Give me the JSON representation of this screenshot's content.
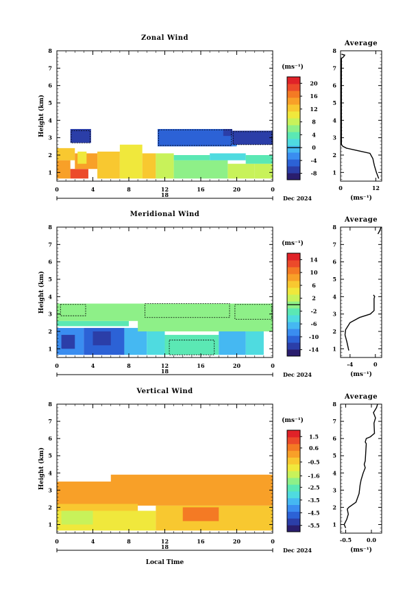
{
  "figure": {
    "date_label": "Dec 2024",
    "day_label": "18",
    "xlabel": "Local Time"
  },
  "chart_data": [
    {
      "type": "heatmap",
      "title": "Zonal Wind",
      "ylabel": "Height (km)",
      "unit_label": "(ms⁻¹)",
      "xlim": [
        0,
        24
      ],
      "ylim": [
        0.5,
        8
      ],
      "x_ticks": [
        "0",
        "4",
        "8",
        "12",
        "16",
        "20",
        "0"
      ],
      "y_ticks": [
        "1",
        "2",
        "3",
        "4",
        "5",
        "6",
        "7",
        "8"
      ],
      "colorbar": {
        "range": [
          -10,
          22
        ],
        "labels": [
          "20",
          "16",
          "12",
          "8",
          "4",
          "0",
          "-4",
          "-8"
        ],
        "contour_level": 0
      },
      "field": [
        {
          "x": [
            0,
            1.5
          ],
          "y": [
            0.65,
            1.7
          ],
          "v": 14
        },
        {
          "x": [
            1.5,
            3.5
          ],
          "y": [
            0.65,
            1.2
          ],
          "v": 18
        },
        {
          "x": [
            0,
            2
          ],
          "y": [
            1.7,
            2.4
          ],
          "v": 12
        },
        {
          "x": [
            2,
            4.5
          ],
          "y": [
            1.2,
            2.1
          ],
          "v": 14
        },
        {
          "x": [
            4.5,
            7
          ],
          "y": [
            0.65,
            2.2
          ],
          "v": 13
        },
        {
          "x": [
            7,
            9.5
          ],
          "y": [
            0.65,
            2.6
          ],
          "v": 11
        },
        {
          "x": [
            2.3,
            3.3
          ],
          "y": [
            1.5,
            2.2
          ],
          "v": 10
        },
        {
          "x": [
            9.5,
            11
          ],
          "y": [
            0.65,
            2.1
          ],
          "v": 13
        },
        {
          "x": [
            11,
            13
          ],
          "y": [
            0.65,
            2.1
          ],
          "v": 9
        },
        {
          "x": [
            13,
            16
          ],
          "y": [
            0.65,
            1.7
          ],
          "v": 7
        },
        {
          "x": [
            16,
            19
          ],
          "y": [
            0.65,
            1.7
          ],
          "v": 6
        },
        {
          "x": [
            19,
            22
          ],
          "y": [
            0.65,
            1.5
          ],
          "v": 9
        },
        {
          "x": [
            22,
            24
          ],
          "y": [
            0.65,
            1.5
          ],
          "v": 8
        },
        {
          "x": [
            13,
            17
          ],
          "y": [
            1.7,
            2.0
          ],
          "v": 3
        },
        {
          "x": [
            17,
            21
          ],
          "y": [
            1.7,
            2.1
          ],
          "v": 2
        },
        {
          "x": [
            21,
            24
          ],
          "y": [
            1.5,
            2.0
          ],
          "v": 4
        },
        {
          "x": [
            1.5,
            3.8
          ],
          "y": [
            2.7,
            3.5
          ],
          "v": -6
        },
        {
          "x": [
            11.2,
            19.5
          ],
          "y": [
            2.5,
            3.5
          ],
          "v": -4
        },
        {
          "x": [
            18.5,
            19.5
          ],
          "y": [
            3.1,
            3.5
          ],
          "v": -7
        },
        {
          "x": [
            19.5,
            20
          ],
          "y": [
            2.5,
            3.0
          ],
          "v": -2
        },
        {
          "x": [
            19.5,
            24
          ],
          "y": [
            2.6,
            3.4
          ],
          "v": -6
        }
      ],
      "contour_boxes": [
        {
          "x": [
            1.6,
            3.7
          ],
          "y": [
            2.7,
            3.4
          ]
        },
        {
          "x": [
            11.3,
            19.4
          ],
          "y": [
            2.55,
            3.45
          ]
        },
        {
          "x": [
            19.6,
            23.9
          ],
          "y": [
            2.6,
            3.35
          ]
        }
      ],
      "profile": {
        "title": "Average",
        "xlabel": "(ms⁻¹)",
        "xlim": [
          0,
          14
        ],
        "x_ticks": [
          {
            "value": 0,
            "label": "0"
          },
          {
            "value": 12,
            "label": "12"
          }
        ],
        "x": [
          13.0,
          12.2,
          11.5,
          11.0,
          10.0,
          6.0,
          2.0,
          0.8,
          0.3,
          0.3,
          0.6,
          1.0,
          1.2,
          1.4,
          0.4
        ],
        "y": [
          0.65,
          1.0,
          1.4,
          1.8,
          2.1,
          2.25,
          2.4,
          2.5,
          2.6,
          7.55,
          7.6,
          7.65,
          7.7,
          7.75,
          7.8
        ]
      }
    },
    {
      "type": "heatmap",
      "title": "Meridional Wind",
      "ylabel": "Height (km)",
      "unit_label": "(ms⁻¹)",
      "xlim": [
        0,
        24
      ],
      "ylim": [
        0.5,
        8
      ],
      "x_ticks": [
        "0",
        "4",
        "8",
        "12",
        "16",
        "20",
        "0"
      ],
      "y_ticks": [
        "1",
        "2",
        "3",
        "4",
        "5",
        "6",
        "7",
        "8"
      ],
      "colorbar": {
        "range": [
          -16,
          16
        ],
        "labels": [
          "14",
          "10",
          "6",
          "2",
          "-2",
          "-6",
          "-10",
          "-14"
        ],
        "contour_level": 0
      },
      "field": [
        {
          "x": [
            0,
            3
          ],
          "y": [
            0.65,
            2.2
          ],
          "v": -8
        },
        {
          "x": [
            3,
            7.5
          ],
          "y": [
            0.65,
            2.2
          ],
          "v": -10
        },
        {
          "x": [
            7.5,
            10
          ],
          "y": [
            0.65,
            2.2
          ],
          "v": -7
        },
        {
          "x": [
            0.5,
            2
          ],
          "y": [
            1.0,
            1.8
          ],
          "v": -13
        },
        {
          "x": [
            4,
            6
          ],
          "y": [
            1.2,
            2.0
          ],
          "v": -12
        },
        {
          "x": [
            10,
            12
          ],
          "y": [
            0.65,
            2.0
          ],
          "v": -4
        },
        {
          "x": [
            12,
            18
          ],
          "y": [
            0.65,
            1.8
          ],
          "v": -2
        },
        {
          "x": [
            18,
            21
          ],
          "y": [
            0.65,
            2.0
          ],
          "v": -6
        },
        {
          "x": [
            21,
            23
          ],
          "y": [
            0.65,
            2.0
          ],
          "v": -5
        },
        {
          "x": [
            0,
            8
          ],
          "y": [
            2.3,
            2.6
          ],
          "v": -2
        },
        {
          "x": [
            9,
            24
          ],
          "y": [
            2.0,
            2.8
          ],
          "v": -1
        },
        {
          "x": [
            0,
            24
          ],
          "y": [
            2.6,
            3.6
          ],
          "v": -1
        },
        {
          "x": [
            0.5,
            3
          ],
          "y": [
            3.0,
            3.5
          ],
          "v": 1
        },
        {
          "x": [
            10,
            19
          ],
          "y": [
            2.9,
            3.6
          ],
          "v": 1
        },
        {
          "x": [
            20,
            24
          ],
          "y": [
            2.8,
            3.5
          ],
          "v": 1
        }
      ],
      "contour_boxes": [
        {
          "x": [
            0.4,
            3.2
          ],
          "y": [
            2.9,
            3.55
          ]
        },
        {
          "x": [
            9.8,
            19.2
          ],
          "y": [
            2.8,
            3.6
          ]
        },
        {
          "x": [
            19.8,
            23.9
          ],
          "y": [
            2.7,
            3.55
          ]
        },
        {
          "x": [
            12.5,
            17.5
          ],
          "y": [
            0.65,
            1.5
          ]
        }
      ],
      "profile": {
        "title": "Average",
        "xlabel": "(ms⁻¹)",
        "xlim": [
          -5.5,
          1
        ],
        "x_ticks": [
          {
            "value": -4,
            "label": "-4"
          },
          {
            "value": 0,
            "label": "0"
          }
        ],
        "x": [
          -4.2,
          -4.5,
          -4.8,
          -4.7,
          -4.0,
          -2.5,
          -0.8,
          -0.2,
          -0.2,
          -0.1,
          -0.3
        ],
        "y": [
          0.9,
          1.4,
          1.8,
          2.1,
          2.5,
          2.8,
          3.0,
          3.2,
          3.9,
          4.0,
          4.1
        ],
        "top_x": [
          0.4,
          0.7,
          0.9
        ],
        "top_y": [
          7.6,
          7.8,
          8.0
        ]
      }
    },
    {
      "type": "heatmap",
      "title": "Vertical Wind",
      "ylabel": "Height (km)",
      "unit_label": "(ms⁻¹)",
      "xlim": [
        0,
        24
      ],
      "ylim": [
        0.5,
        8
      ],
      "x_ticks": [
        "0",
        "4",
        "8",
        "12",
        "16",
        "20",
        "0"
      ],
      "y_ticks": [
        "1",
        "2",
        "3",
        "4",
        "5",
        "6",
        "7",
        "8"
      ],
      "colorbar": {
        "range": [
          -6,
          2
        ],
        "labels": [
          "1.5",
          "0.6",
          "-0.5",
          "-1.6",
          "-2.5",
          "-3.5",
          "-4.5",
          "-5.5"
        ]
      },
      "field": [
        {
          "x": [
            0,
            24
          ],
          "y": [
            2.5,
            3.5
          ],
          "v": 0.2
        },
        {
          "x": [
            0,
            24
          ],
          "y": [
            2.1,
            2.6
          ],
          "v": 0.0
        },
        {
          "x": [
            0,
            9
          ],
          "y": [
            1.7,
            2.2
          ],
          "v": -0.5
        },
        {
          "x": [
            0,
            11
          ],
          "y": [
            0.65,
            1.8
          ],
          "v": -0.9
        },
        {
          "x": [
            11,
            24
          ],
          "y": [
            0.65,
            2.1
          ],
          "v": -0.5
        },
        {
          "x": [
            0.5,
            4
          ],
          "y": [
            1.0,
            1.8
          ],
          "v": -1.4
        },
        {
          "x": [
            14,
            18
          ],
          "y": [
            1.2,
            2.0
          ],
          "v": 0.7
        },
        {
          "x": [
            6,
            24
          ],
          "y": [
            3.3,
            3.9
          ],
          "v": 0.2
        }
      ],
      "contour_boxes": [],
      "profile": {
        "title": "Average",
        "xlabel": "(ms⁻¹)",
        "xlim": [
          -0.6,
          0.2
        ],
        "x_ticks": [
          {
            "value": -0.5,
            "label": "-0.5"
          },
          {
            "value": 0.0,
            "label": "0.0"
          }
        ],
        "x": [
          -0.5,
          -0.53,
          -0.48,
          -0.45,
          -0.47,
          -0.44,
          -0.3,
          -0.24,
          -0.22,
          -0.2,
          -0.18,
          -0.16,
          -0.12,
          -0.14,
          -0.12,
          -0.1,
          -0.12,
          -0.1,
          -0.02,
          0.06,
          0.05,
          0.08,
          0.04,
          0.1,
          0.12
        ],
        "y": [
          0.8,
          1.0,
          1.3,
          1.6,
          1.9,
          2.0,
          2.3,
          2.8,
          3.3,
          3.6,
          3.8,
          4.0,
          4.3,
          4.5,
          4.7,
          5.7,
          5.8,
          6.0,
          6.1,
          6.3,
          6.9,
          7.2,
          7.5,
          7.8,
          8.0
        ]
      }
    }
  ]
}
